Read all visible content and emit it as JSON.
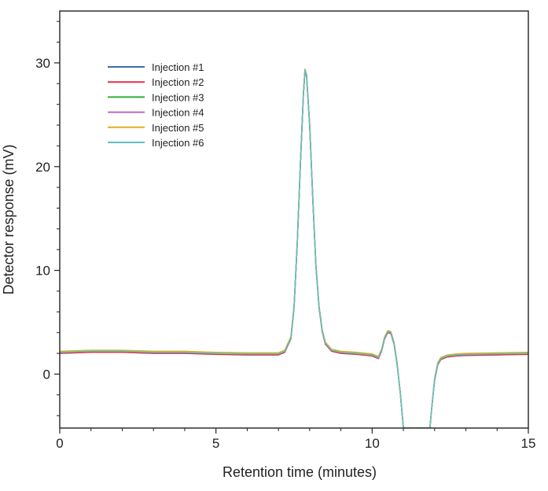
{
  "chart_data": {
    "type": "line",
    "title": "",
    "xlabel": "Retention time (minutes)",
    "ylabel": "Detector response (mV)",
    "xlim": [
      0,
      15
    ],
    "ylim": [
      -5.2,
      35
    ],
    "x_ticks": [
      0,
      5,
      10,
      15
    ],
    "y_ticks": [
      0,
      10,
      20,
      30
    ],
    "x_tick_labels": [
      "0",
      "5",
      "10",
      "15"
    ],
    "y_tick_labels": [
      "0",
      "10",
      "20",
      "30"
    ],
    "grid": false,
    "legend_position": "top-left",
    "series": [
      {
        "name": "Injection #1",
        "color": "#3a6fa8",
        "offset": -0.05
      },
      {
        "name": "Injection #2",
        "color": "#e0304a",
        "offset": -0.1
      },
      {
        "name": "Injection #3",
        "color": "#3aa83a",
        "offset": 0.0
      },
      {
        "name": "Injection #4",
        "color": "#b070c0",
        "offset": 0.05
      },
      {
        "name": "Injection #5",
        "color": "#e0b020",
        "offset": 0.1
      },
      {
        "name": "Injection #6",
        "color": "#60c0c0",
        "offset": 0.0
      }
    ],
    "x": [
      0,
      1,
      2,
      3,
      4,
      5,
      6,
      6.5,
      7,
      7.2,
      7.4,
      7.5,
      7.6,
      7.7,
      7.8,
      7.85,
      7.9,
      8.0,
      8.1,
      8.2,
      8.3,
      8.4,
      8.5,
      8.7,
      9.0,
      9.5,
      10.0,
      10.2,
      10.3,
      10.4,
      10.5,
      10.6,
      10.7,
      10.8,
      10.9,
      11.0,
      11.05,
      11.8,
      11.85,
      11.9,
      12.0,
      12.1,
      12.2,
      12.4,
      12.7,
      13.0,
      14.0,
      15.0
    ],
    "y": [
      2.1,
      2.2,
      2.2,
      2.1,
      2.1,
      2.0,
      1.95,
      1.95,
      1.95,
      2.2,
      3.5,
      6.5,
      12.5,
      20.0,
      27.0,
      29.3,
      28.8,
      24.0,
      17.0,
      10.5,
      6.5,
      4.2,
      3.0,
      2.3,
      2.1,
      2.0,
      1.85,
      1.6,
      2.3,
      3.5,
      4.1,
      4.0,
      3.0,
      1.0,
      -1.8,
      -5.2,
      -5.2,
      -5.2,
      -5.2,
      -3.5,
      -0.5,
      1.0,
      1.5,
      1.75,
      1.85,
      1.9,
      1.95,
      2.0
    ]
  }
}
